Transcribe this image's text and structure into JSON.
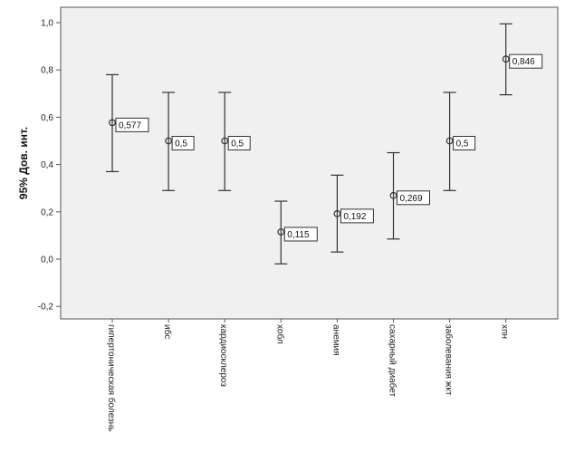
{
  "chart_data": {
    "type": "errorbar",
    "title": "",
    "xlabel": "",
    "ylabel": "95% Дов. инт.",
    "ylim": [
      -0.25,
      1.05
    ],
    "yticks": [
      -0.2,
      0.0,
      0.2,
      0.4,
      0.6,
      0.8,
      1.0
    ],
    "ytick_labels": [
      "-0,2",
      "0,0",
      "0,2",
      "0,4",
      "0,6",
      "0,8",
      "1,0"
    ],
    "grid": false,
    "categories": [
      "гипертоническая болезнь",
      "ибс",
      "кардиосклероз",
      "хобл",
      "анемия",
      "сахарный диабет",
      "заболевания жкт",
      "хпн"
    ],
    "means": [
      0.577,
      0.5,
      0.5,
      0.115,
      0.192,
      0.269,
      0.5,
      0.846
    ],
    "lower": [
      0.37,
      0.29,
      0.29,
      -0.02,
      0.03,
      0.085,
      0.29,
      0.695
    ],
    "upper": [
      0.78,
      0.705,
      0.705,
      0.245,
      0.355,
      0.45,
      0.705,
      0.995
    ],
    "data_labels": [
      "0,577",
      "0,5",
      "0,5",
      "0,115",
      "0,192",
      "0,269",
      "0,5",
      "0,846"
    ],
    "colors": {
      "plot_bg": "#f0f0f0",
      "axis": "#555555",
      "marks": "#333333",
      "label_bg": "#ffffff"
    }
  }
}
